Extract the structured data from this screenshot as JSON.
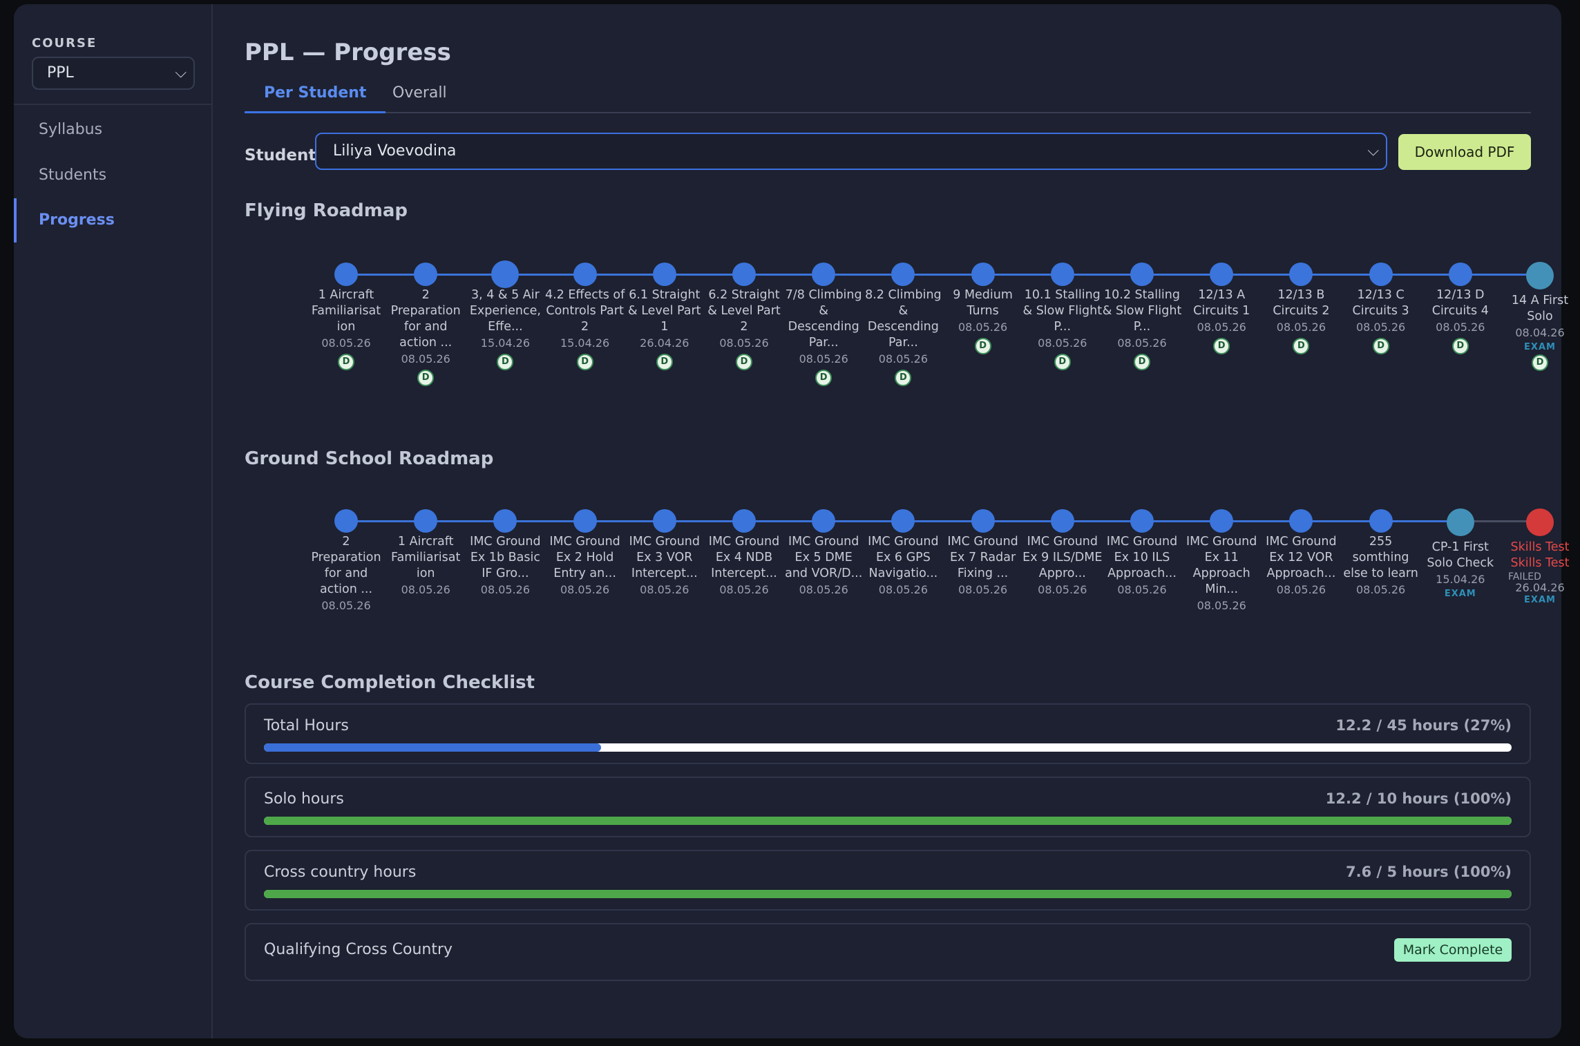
{
  "sidebar": {
    "course_label": "COURSE",
    "course_value": "PPL",
    "items": [
      {
        "label": "Syllabus",
        "active": false
      },
      {
        "label": "Students",
        "active": false
      },
      {
        "label": "Progress",
        "active": true
      }
    ]
  },
  "header": {
    "title": "PPL — Progress",
    "tabs": [
      {
        "label": "Per Student",
        "active": true
      },
      {
        "label": "Overall",
        "active": false
      }
    ]
  },
  "student": {
    "label": "Student",
    "value": "Liliya Voevodina"
  },
  "download_label": "Download PDF",
  "flying": {
    "title": "Flying Roadmap",
    "nodes": [
      {
        "label": "1 Aircraft Familiarisat ion",
        "date": "08.05.26",
        "badge": "D"
      },
      {
        "label": "2 Preparation for and action ...",
        "date": "08.05.26",
        "badge": "D"
      },
      {
        "label": "3, 4 & 5 Air Experience, Effe...",
        "date": "15.04.26",
        "badge": "D"
      },
      {
        "label": "4.2 Effects of Controls Part 2",
        "date": "15.04.26",
        "badge": "D"
      },
      {
        "label": "6.1 Straight & Level Part 1",
        "date": "26.04.26",
        "badge": "D"
      },
      {
        "label": "6.2 Straight & Level Part 2",
        "date": "08.05.26",
        "badge": "D"
      },
      {
        "label": "7/8 Climbing & Descending Par...",
        "date": "08.05.26",
        "badge": "D"
      },
      {
        "label": "8.2 Climbing & Descending Par...",
        "date": "08.05.26",
        "badge": "D"
      },
      {
        "label": "9 Medium Turns",
        "date": "08.05.26",
        "badge": "D"
      },
      {
        "label": "10.1 Stalling & Slow Flight P...",
        "date": "08.05.26",
        "badge": "D"
      },
      {
        "label": "10.2 Stalling & Slow Flight P...",
        "date": "08.05.26",
        "badge": "D"
      },
      {
        "label": "12/13 A Circuits 1",
        "date": "08.05.26",
        "badge": "D"
      },
      {
        "label": "12/13 B Circuits 2",
        "date": "08.05.26",
        "badge": "D"
      },
      {
        "label": "12/13 C Circuits 3",
        "date": "08.05.26",
        "badge": "D"
      },
      {
        "label": "12/13 D Circuits 4",
        "date": "08.05.26",
        "badge": "D"
      },
      {
        "label": "14 A First Solo",
        "date": "08.04.26",
        "exam": "EXAM",
        "badge": "D"
      }
    ]
  },
  "ground": {
    "title": "Ground School Roadmap",
    "nodes": [
      {
        "label": "2 Preparation for and action ...",
        "date": "08.05.26"
      },
      {
        "label": "1 Aircraft Familiarisat ion",
        "date": "08.05.26"
      },
      {
        "label": "IMC Ground Ex 1b Basic IF Gro...",
        "date": "08.05.26"
      },
      {
        "label": "IMC Ground Ex 2 Hold Entry an...",
        "date": "08.05.26"
      },
      {
        "label": "IMC Ground Ex 3 VOR Intercept...",
        "date": "08.05.26"
      },
      {
        "label": "IMC Ground Ex 4 NDB Intercept...",
        "date": "08.05.26"
      },
      {
        "label": "IMC Ground Ex 5 DME and VOR/D...",
        "date": "08.05.26"
      },
      {
        "label": "IMC Ground Ex 6 GPS Navigatio...",
        "date": "08.05.26"
      },
      {
        "label": "IMC Ground Ex 7 Radar Fixing ...",
        "date": "08.05.26"
      },
      {
        "label": "IMC Ground Ex 9 ILS/DME Appro...",
        "date": "08.05.26"
      },
      {
        "label": "IMC Ground Ex 10 ILS Approach...",
        "date": "08.05.26"
      },
      {
        "label": "IMC Ground Ex 11 Approach Min...",
        "date": "08.05.26"
      },
      {
        "label": "IMC Ground Ex 12 VOR Approach...",
        "date": "08.05.26"
      },
      {
        "label": "255 somthing else to learn",
        "date": "08.05.26"
      },
      {
        "label": "CP-1 First Solo Check",
        "date": "15.04.26",
        "exam": "EXAM"
      },
      {
        "label": "Skills Test Skills Test",
        "status": "FAILED",
        "date": "26.04.26",
        "exam": "EXAM"
      }
    ]
  },
  "checklist": {
    "title": "Course Completion Checklist",
    "items": [
      {
        "name": "Total Hours",
        "value": "12.2 / 45 hours (27%)",
        "progress": 0.27
      },
      {
        "name": "Solo hours",
        "value": "12.2 / 10 hours (100%)",
        "progress": 1.0
      },
      {
        "name": "Cross country hours",
        "value": "7.6 / 5 hours (100%)",
        "progress": 1.0
      },
      {
        "name": "Qualifying Cross Country",
        "action": "Mark Complete"
      }
    ]
  },
  "colors": {
    "accent": "#3b74db",
    "teal": "#4391b8",
    "fail": "#d43a3a",
    "progress_blue": "#3a6fd8",
    "progress_green": "#4ea84a",
    "download_bg": "#cdea90",
    "mark_bg": "#9ff0c4"
  },
  "icons": {
    "select_chevron": "chevron-down-icon"
  }
}
